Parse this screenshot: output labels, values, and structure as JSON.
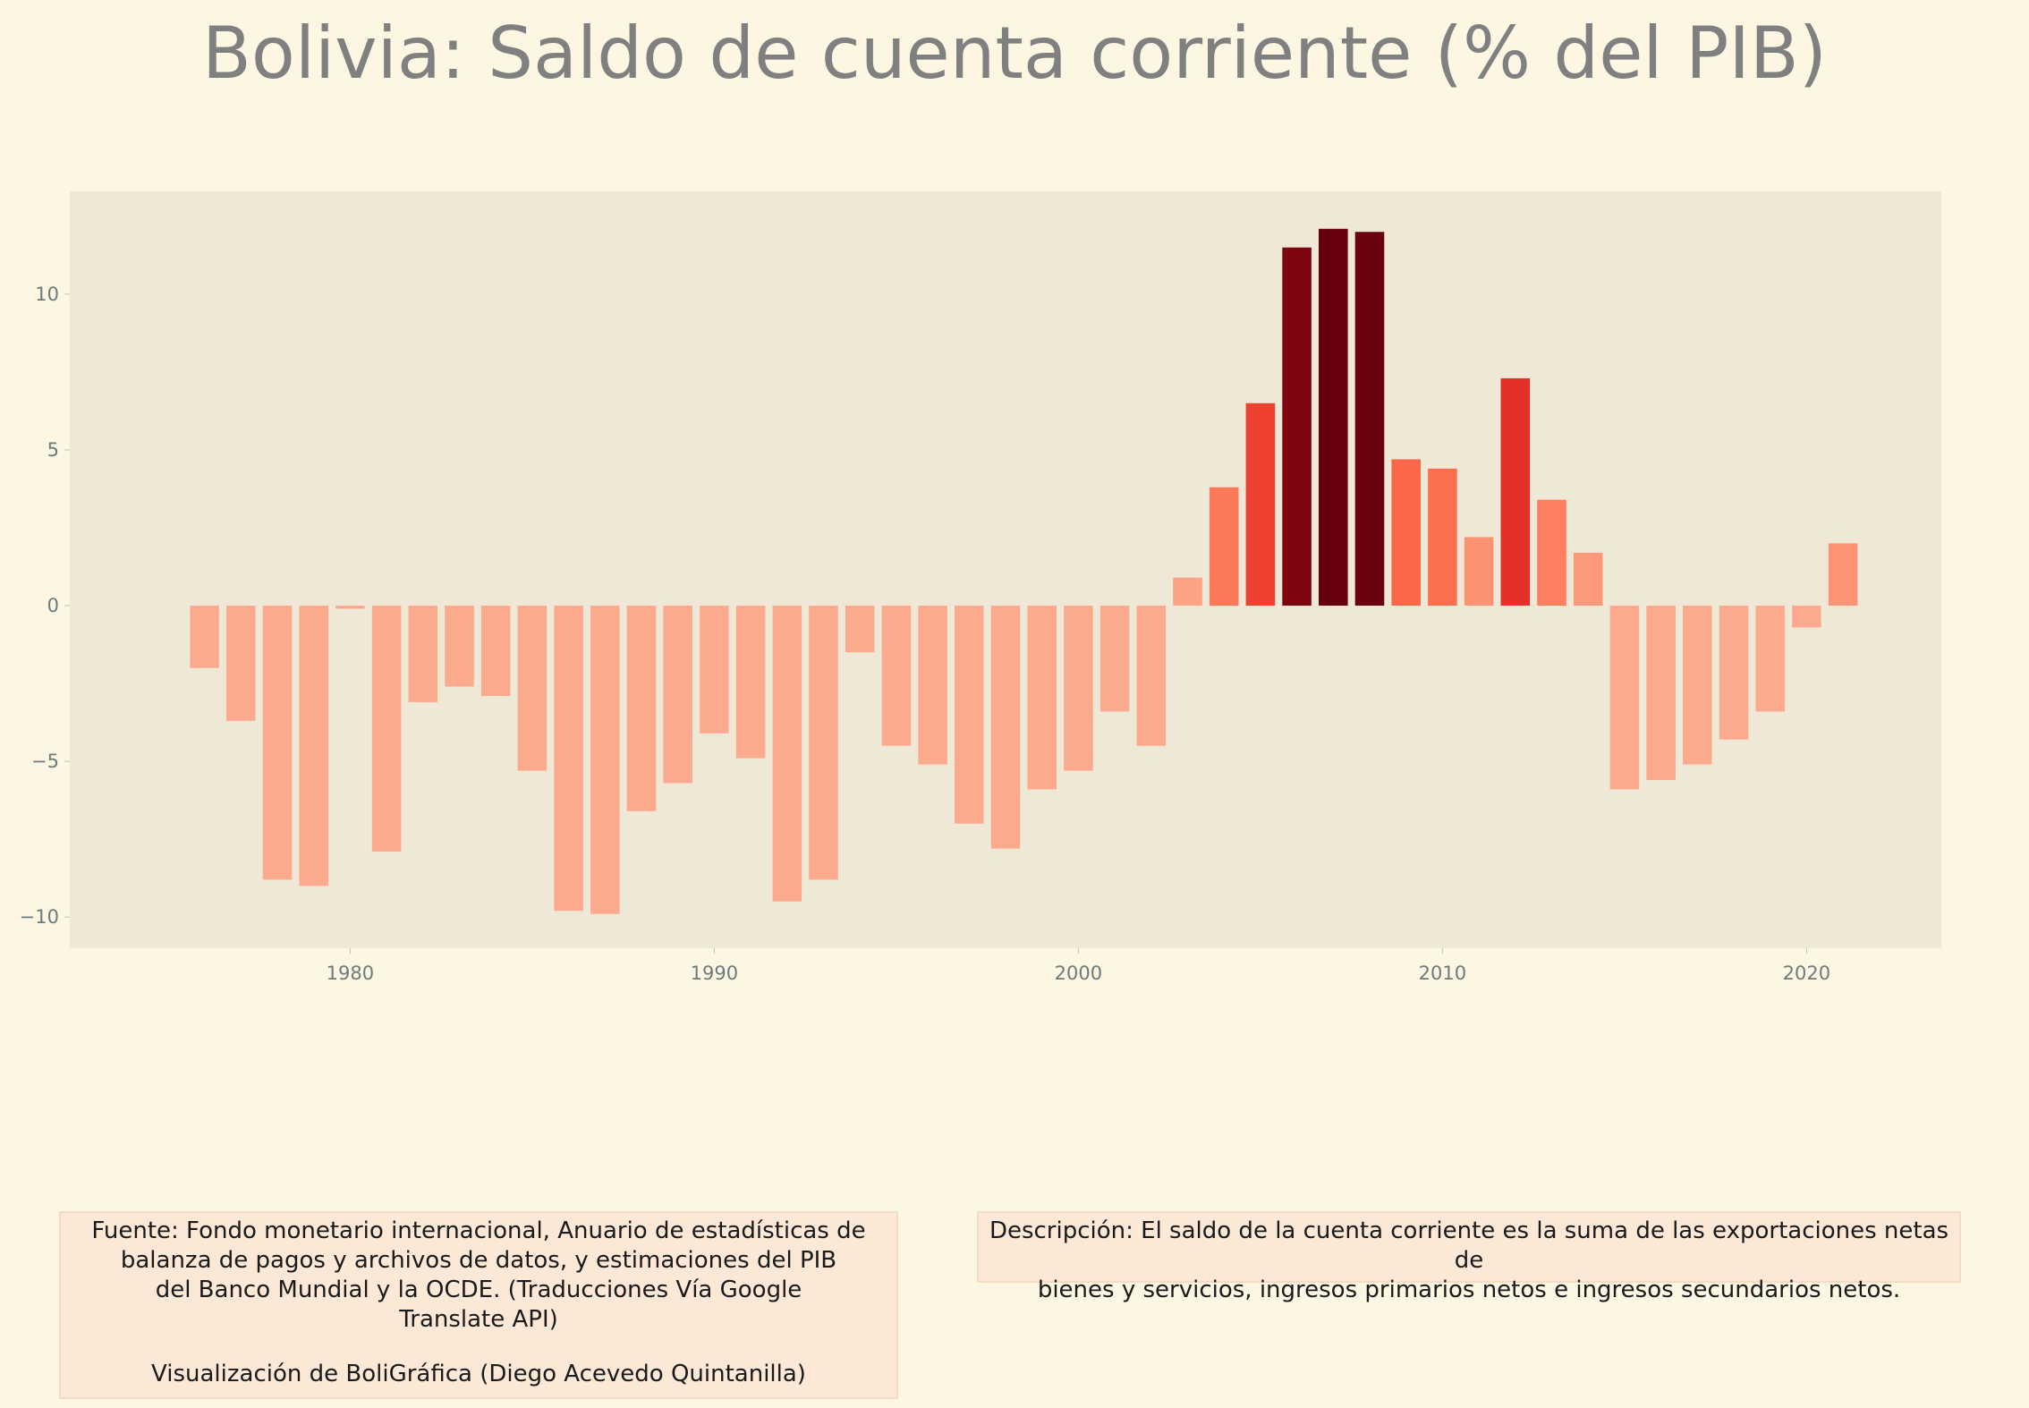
{
  "chart_data": {
    "type": "bar",
    "title": "Bolivia:  Saldo de cuenta corriente (% del PIB)",
    "xlabel": "",
    "ylabel": "",
    "x": [
      1976,
      1977,
      1978,
      1979,
      1980,
      1981,
      1982,
      1983,
      1984,
      1985,
      1986,
      1987,
      1988,
      1989,
      1990,
      1991,
      1992,
      1993,
      1994,
      1995,
      1996,
      1997,
      1998,
      1999,
      2000,
      2001,
      2002,
      2003,
      2004,
      2005,
      2006,
      2007,
      2008,
      2009,
      2010,
      2011,
      2012,
      2013,
      2014,
      2015,
      2016,
      2017,
      2018,
      2019,
      2020,
      2021
    ],
    "values": [
      -2.0,
      -3.7,
      -8.8,
      -9.0,
      -0.1,
      -7.9,
      -3.1,
      -2.6,
      -2.9,
      -5.3,
      -9.8,
      -9.9,
      -6.6,
      -5.7,
      -4.1,
      -4.9,
      -9.5,
      -8.8,
      -1.5,
      -4.5,
      -5.1,
      -7.0,
      -7.8,
      -5.9,
      -5.3,
      -3.4,
      -4.5,
      0.9,
      3.8,
      6.5,
      11.5,
      12.1,
      12.0,
      4.7,
      4.4,
      2.2,
      7.3,
      3.4,
      1.7,
      -5.9,
      -5.6,
      -5.1,
      -4.3,
      -3.4,
      -0.7,
      2.0
    ],
    "xlim": [
      1972.3,
      2023.7
    ],
    "ylim": [
      -11.0,
      13.3
    ],
    "xticks": [
      1980,
      1990,
      2000,
      2010,
      2020
    ],
    "xtick_labels": [
      "1980",
      "1990",
      "2000",
      "2010",
      "2020"
    ],
    "yticks": [
      -10,
      -5,
      0,
      5,
      10
    ],
    "ytick_labels": [
      "−10",
      "−5",
      "0",
      "5",
      "10"
    ],
    "grid": false,
    "legend": "none",
    "colormap": "Reds",
    "colors": {
      "background": "#fdf6e3",
      "plot_background": "#f0e8d6",
      "negative_bar": "#fcaa8e"
    }
  },
  "notes": {
    "source_lines": [
      "Fuente: Fondo monetario internacional, Anuario de estadísticas de",
      "balanza de pagos y archivos de datos, y estimaciones del PIB",
      "del Banco Mundial y la OCDE. (Traducciones Vía Google",
      "Translate API)"
    ],
    "credit": "Visualización de BoliGráfica (Diego Acevedo Quintanilla)",
    "description_lines": [
      "Descripción: El saldo de la cuenta corriente es la suma de las exportaciones netas de",
      "bienes y servicios, ingresos primarios netos e ingresos secundarios netos."
    ]
  }
}
